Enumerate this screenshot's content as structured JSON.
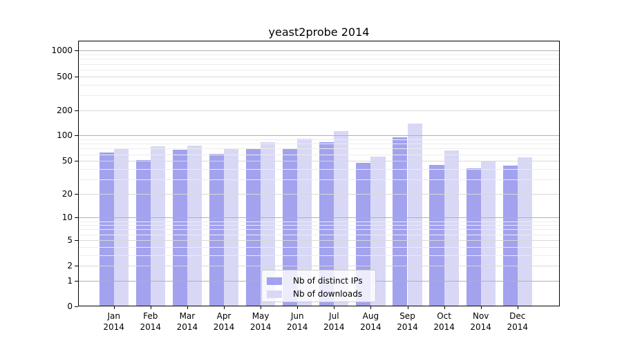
{
  "title": "yeast2probe 2014",
  "colors": {
    "distinct_ips": "#a2a2ee",
    "downloads": "#d8d8f6",
    "grid_major": "#b0b0b0",
    "grid_mid": "#d8d8d8",
    "grid_minor": "#ececec",
    "axis": "#000000",
    "legend_border": "#cccccc"
  },
  "legend": {
    "items": [
      {
        "label": "Nb of distinct IPs",
        "key": "distinct_ips"
      },
      {
        "label": "Nb of downloads",
        "key": "downloads"
      }
    ]
  },
  "chart_data": {
    "type": "bar",
    "title": "yeast2probe 2014",
    "categories": [
      "Jan 2014",
      "Feb 2014",
      "Mar 2014",
      "Apr 2014",
      "May 2014",
      "Jun 2014",
      "Jul 2014",
      "Aug 2014",
      "Sep 2014",
      "Oct 2014",
      "Nov 2014",
      "Dec 2014"
    ],
    "month_labels": [
      "Jan",
      "Feb",
      "Mar",
      "Apr",
      "May",
      "Jun",
      "Jul",
      "Aug",
      "Sep",
      "Oct",
      "Nov",
      "Dec"
    ],
    "year_label": "2014",
    "series": [
      {
        "name": "Nb of distinct IPs",
        "color_key": "distinct_ips",
        "values": [
          63,
          51,
          68,
          61,
          69,
          70,
          83,
          47,
          96,
          45,
          41,
          44
        ]
      },
      {
        "name": "Nb of downloads",
        "color_key": "downloads",
        "values": [
          71,
          74,
          76,
          70,
          84,
          92,
          113,
          56,
          138,
          67,
          50,
          55
        ]
      }
    ],
    "y_axis": {
      "scale": "log10(value+1)",
      "tick_values": [
        1000,
        500,
        200,
        100,
        50,
        20,
        10,
        5,
        2,
        1,
        0
      ],
      "tick_labels": [
        "1000",
        "500",
        "200",
        "100",
        "50",
        "20",
        "10",
        "5",
        "2",
        "1",
        "0"
      ],
      "ylim": [
        0,
        1300
      ]
    },
    "grid": true,
    "legend_position": "inside-bottom-center"
  }
}
